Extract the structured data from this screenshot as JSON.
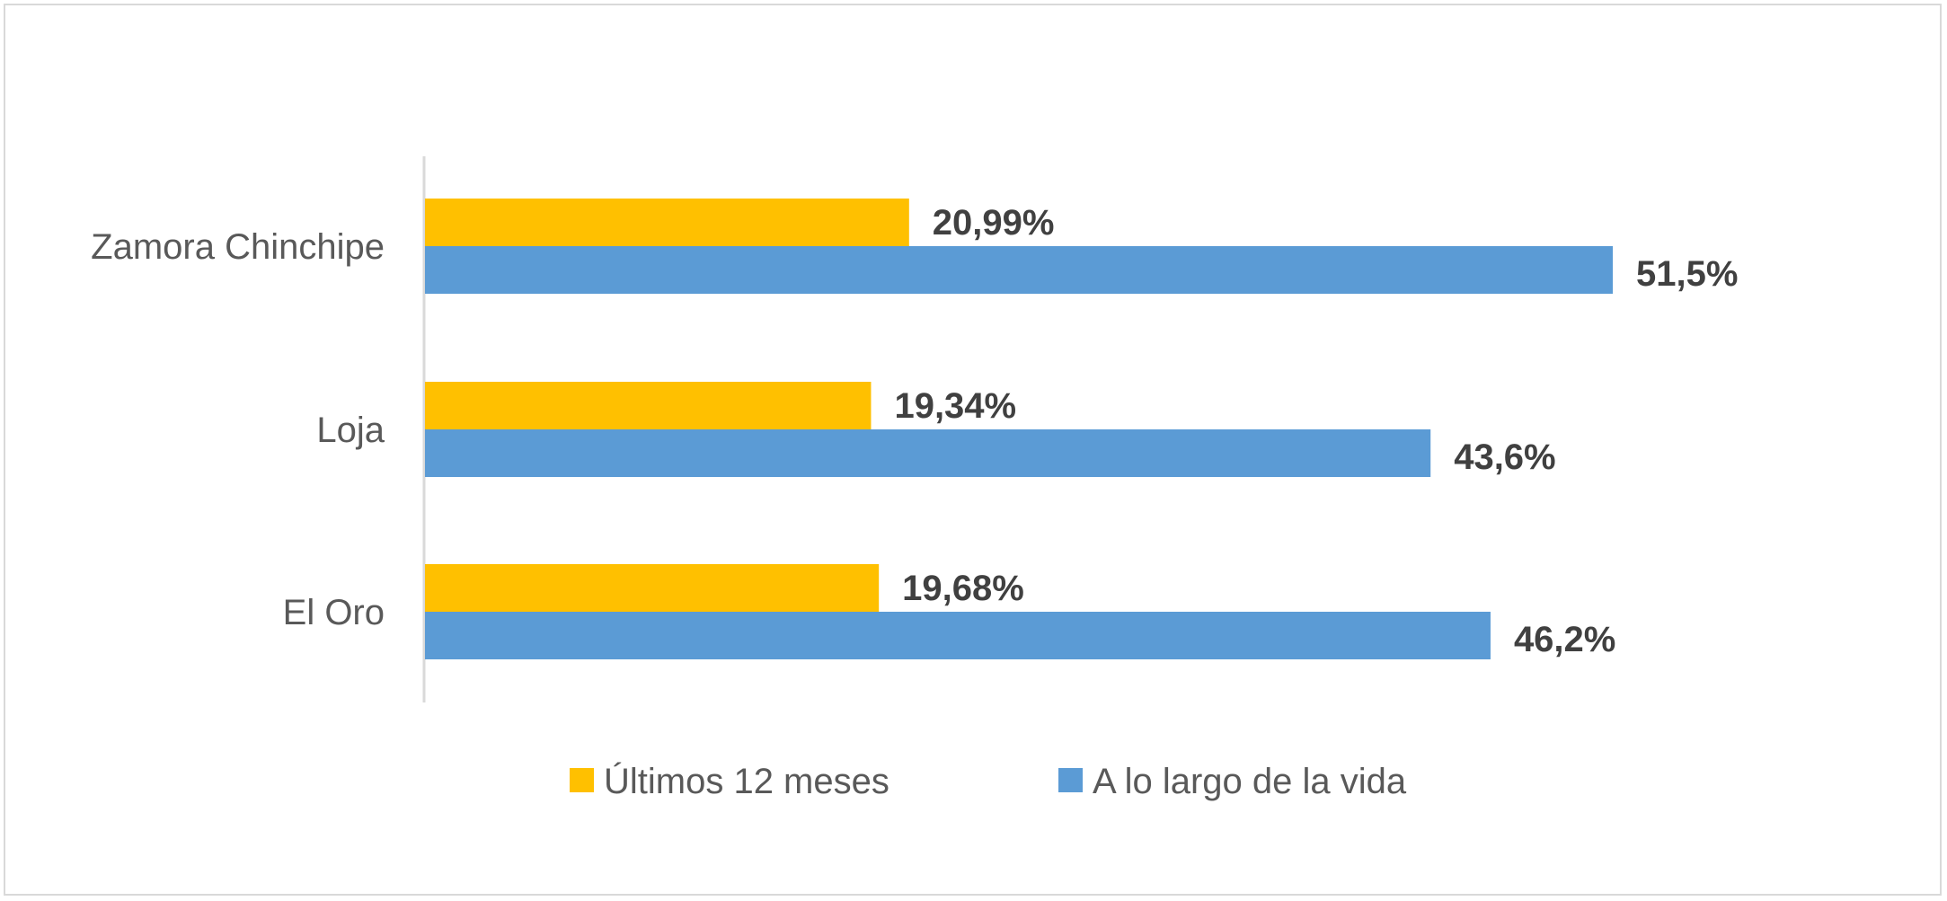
{
  "chart_data": {
    "type": "bar",
    "orientation": "horizontal",
    "categories": [
      "Zamora Chinchipe",
      "Loja",
      "El Oro"
    ],
    "series": [
      {
        "name": "Últimos 12 meses",
        "color": "#FFC000",
        "values": [
          20.99,
          19.34,
          19.68
        ],
        "labels": [
          "20,99%",
          "19,34%",
          "19,68%"
        ]
      },
      {
        "name": "A lo largo de la vida",
        "color": "#5B9BD5",
        "values": [
          51.5,
          43.6,
          46.2
        ],
        "labels": [
          "51,5%",
          "43,6%",
          "46,2%"
        ]
      }
    ],
    "xlim": [
      0,
      52
    ],
    "grid": false,
    "legend_position": "bottom"
  }
}
